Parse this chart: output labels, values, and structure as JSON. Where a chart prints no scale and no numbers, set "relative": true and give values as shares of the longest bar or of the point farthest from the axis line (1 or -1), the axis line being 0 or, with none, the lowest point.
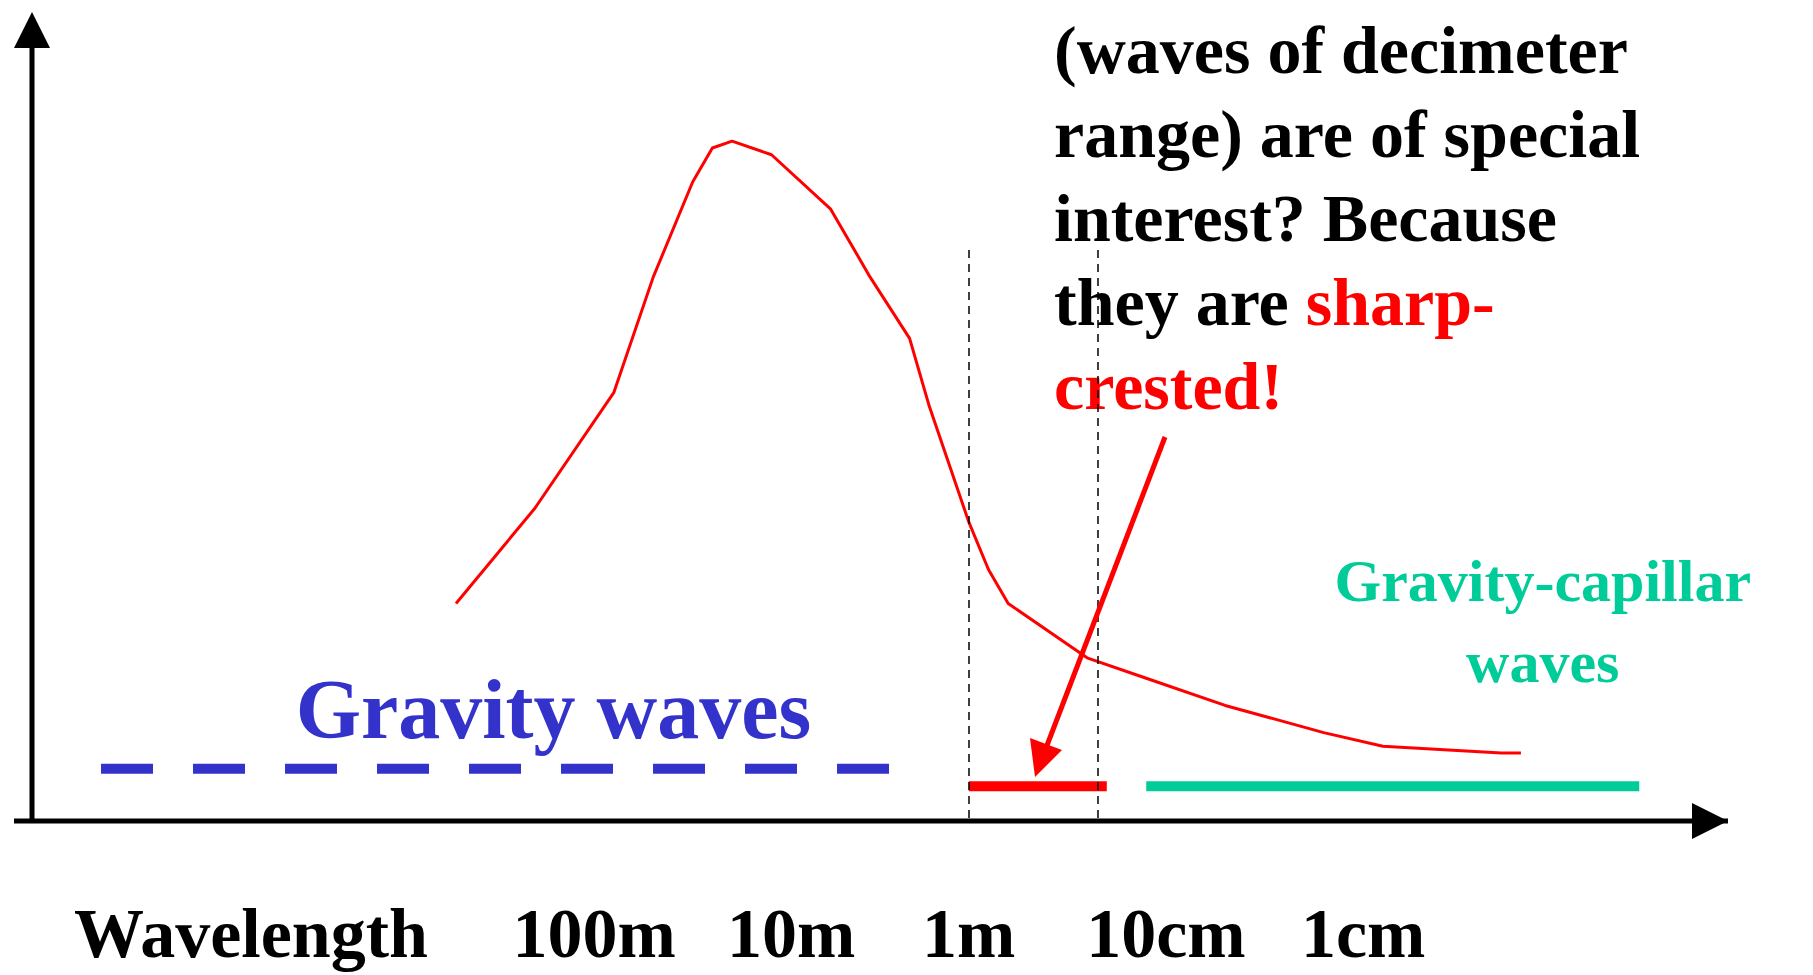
{
  "chart_data": {
    "type": "line",
    "relative": true,
    "xlabel": "Wavelength",
    "categories": [
      null,
      null,
      null,
      null,
      null,
      null,
      null,
      null,
      null,
      null,
      null,
      null,
      null,
      null,
      null,
      null,
      null,
      null,
      null,
      null,
      null,
      null,
      null,
      null,
      null,
      null,
      null,
      null,
      "100m",
      null,
      null,
      null,
      null,
      null,
      null,
      null,
      null,
      null,
      "10m",
      null,
      null,
      null,
      null,
      null,
      null,
      null,
      null,
      "1m",
      null,
      null,
      null,
      null,
      null,
      null,
      null,
      null,
      null,
      "10cm",
      null,
      null,
      null,
      null,
      null,
      null,
      null,
      null,
      null,
      "1cm",
      null,
      null,
      null,
      null,
      null,
      null,
      null,
      null,
      null,
      null,
      null,
      null,
      null,
      null,
      null,
      null,
      null,
      null
    ],
    "legend": false,
    "grid": false,
    "marker": "none",
    "annotations": [
      "(waves of decimeter range) are of special interest? Because they are",
      "sharp-crested!"
    ],
    "series": [
      {
        "color": "#ff0000",
        "values": [
          null,
          null,
          null,
          null,
          null,
          null,
          null,
          null,
          null,
          null,
          null,
          null,
          null,
          null,
          null,
          null,
          null,
          null,
          null,
          null,
          null,
          0.32,
          null,
          null,
          null,
          0.46,
          null,
          null,
          null,
          0.63,
          null,
          0.8,
          null,
          0.94,
          0.99,
          1,
          null,
          0.98,
          null,
          null,
          0.9,
          null,
          0.8,
          null,
          0.71,
          0.61,
          null,
          0.44,
          0.37,
          0.32,
          null,
          null,
          null,
          0.24,
          null,
          null,
          0.21,
          null,
          null,
          null,
          0.17,
          null,
          null,
          null,
          null,
          0.13,
          null,
          null,
          0.11,
          null,
          null,
          null,
          null,
          null,
          0.1,
          0.1,
          null,
          null,
          null,
          null,
          null,
          null,
          null,
          null,
          null,
          null
        ]
      },
      {
        "name": "Gravity waves",
        "color": "#3333cc",
        "line_style": "dashed",
        "values": [
          null,
          null,
          null,
          0.077,
          null,
          null,
          null,
          null,
          null,
          null,
          null,
          null,
          null,
          null,
          null,
          null,
          null,
          null,
          null,
          null,
          null,
          null,
          null,
          null,
          null,
          null,
          null,
          null,
          null,
          null,
          null,
          null,
          null,
          null,
          null,
          null,
          null,
          null,
          null,
          null,
          null,
          null,
          null,
          0.077,
          null,
          null,
          null,
          null,
          null,
          null,
          null,
          null,
          null,
          null,
          null,
          null,
          null,
          null,
          null,
          null,
          null,
          null,
          null,
          null,
          null,
          null,
          null,
          null,
          null,
          null,
          null,
          null,
          null,
          null,
          null,
          null,
          null,
          null,
          null,
          null,
          null,
          null,
          null,
          null,
          null,
          null
        ]
      },
      {
        "color": "#ff0000",
        "values": [
          null,
          null,
          null,
          null,
          null,
          null,
          null,
          null,
          null,
          null,
          null,
          null,
          null,
          null,
          null,
          null,
          null,
          null,
          null,
          null,
          null,
          null,
          null,
          null,
          null,
          null,
          null,
          null,
          null,
          null,
          null,
          null,
          null,
          null,
          null,
          null,
          null,
          null,
          null,
          null,
          null,
          null,
          null,
          null,
          null,
          null,
          null,
          0.051,
          null,
          null,
          null,
          null,
          null,
          null,
          0.051,
          null,
          null,
          null,
          null,
          null,
          null,
          null,
          null,
          null,
          null,
          null,
          null,
          null,
          null,
          null,
          null,
          null,
          null,
          null,
          null,
          null,
          null,
          null,
          null,
          null,
          null,
          null,
          null,
          null,
          null,
          null
        ]
      },
      {
        "name": "Gravity-capillar waves",
        "color": "#00cc99",
        "values": [
          null,
          null,
          null,
          null,
          null,
          null,
          null,
          null,
          null,
          null,
          null,
          null,
          null,
          null,
          null,
          null,
          null,
          null,
          null,
          null,
          null,
          null,
          null,
          null,
          null,
          null,
          null,
          null,
          null,
          null,
          null,
          null,
          null,
          null,
          null,
          null,
          null,
          null,
          null,
          null,
          null,
          null,
          null,
          null,
          null,
          null,
          null,
          null,
          null,
          null,
          null,
          null,
          null,
          null,
          null,
          null,
          0.051,
          null,
          null,
          null,
          null,
          null,
          null,
          null,
          null,
          null,
          null,
          null,
          null,
          null,
          null,
          null,
          null,
          null,
          null,
          null,
          null,
          null,
          null,
          null,
          null,
          0.051,
          null,
          null,
          null,
          null
        ]
      }
    ]
  }
}
